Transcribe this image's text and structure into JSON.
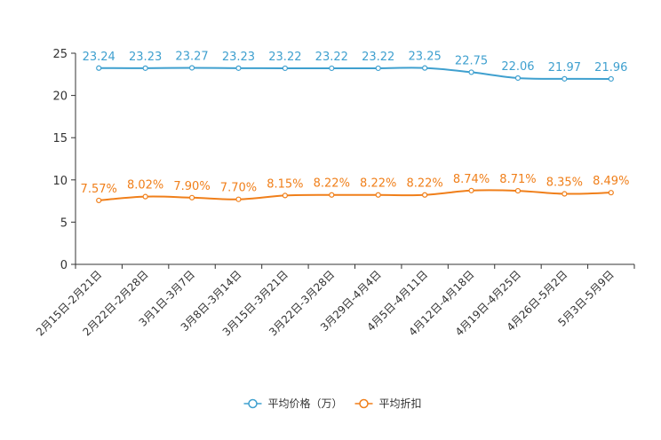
{
  "chart_data": {
    "type": "line",
    "title": "",
    "xlabel": "",
    "ylabel": "",
    "ylim": [
      0,
      25
    ],
    "yticks": [
      0,
      5,
      10,
      15,
      20,
      25
    ],
    "grid": false,
    "legend_position": "bottom-center",
    "categories": [
      "2月15日-2月21日",
      "2月22日-2月28日",
      "3月1日-3月7日",
      "3月8日-3月14日",
      "3月15日-3月21日",
      "3月22日-3月28日",
      "3月29日-4月4日",
      "4月5日-4月11日",
      "4月12日-4月18日",
      "4月19日-4月25日",
      "4月26日-5月2日",
      "5月3日-5月9日"
    ],
    "series": [
      {
        "name": "平均价格（万）",
        "color": "#3fa0cf",
        "values": [
          23.24,
          23.23,
          23.27,
          23.23,
          23.22,
          23.22,
          23.22,
          23.25,
          22.75,
          22.06,
          21.97,
          21.96
        ],
        "labels": [
          "23.24",
          "23.23",
          "23.27",
          "23.23",
          "23.22",
          "23.22",
          "23.22",
          "23.25",
          "22.75",
          "22.06",
          "21.97",
          "21.96"
        ]
      },
      {
        "name": "平均折扣",
        "color": "#f07f1a",
        "values": [
          7.57,
          8.02,
          7.9,
          7.7,
          8.15,
          8.22,
          8.22,
          8.22,
          8.74,
          8.71,
          8.35,
          8.49
        ],
        "labels": [
          "7.57%",
          "8.02%",
          "7.90%",
          "7.70%",
          "8.15%",
          "8.22%",
          "8.22%",
          "8.22%",
          "8.74%",
          "8.71%",
          "8.35%",
          "8.49%"
        ]
      }
    ]
  }
}
